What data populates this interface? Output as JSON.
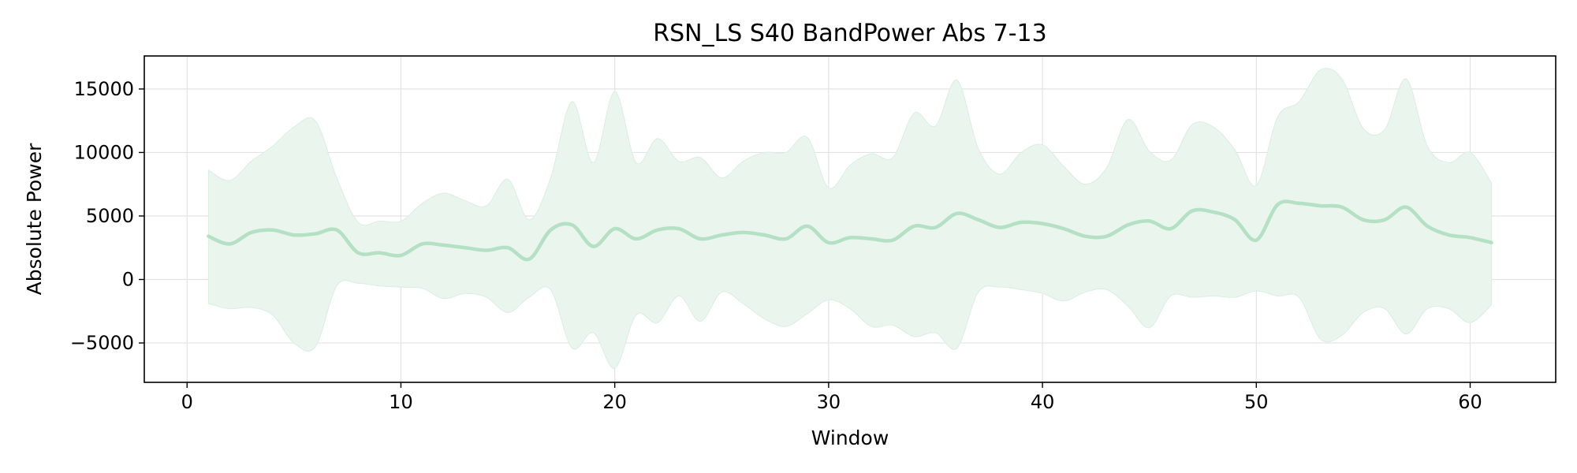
{
  "chart_data": {
    "type": "line",
    "title": "RSN_LS S40 BandPower Abs 7-13",
    "xlabel": "Window",
    "ylabel": "Absolute Power",
    "xlim": [
      -2,
      64
    ],
    "ylim": [
      -8100,
      17600
    ],
    "xticks": [
      0,
      10,
      20,
      30,
      40,
      50,
      60
    ],
    "yticks": [
      -5000,
      0,
      5000,
      10000,
      15000
    ],
    "ytick_labels": [
      "−5000",
      "0",
      "5000",
      "10000",
      "15000"
    ],
    "grid": true,
    "legend": "none",
    "colors": {
      "line": "#b4e0c3",
      "band": "#eaf5ed",
      "band_edge": "#d9efe0"
    },
    "series": [
      {
        "x": [
          1,
          2,
          3,
          4,
          5,
          6,
          7,
          8,
          9,
          10,
          11,
          12,
          13,
          14,
          15,
          16,
          17,
          18,
          19,
          20,
          21,
          22,
          23,
          24,
          25,
          26,
          27,
          28,
          29,
          30,
          31,
          32,
          33,
          34,
          35,
          36,
          37,
          38,
          39,
          40,
          41,
          42,
          43,
          44,
          45,
          46,
          47,
          48,
          49,
          50,
          51,
          52,
          53,
          54,
          55,
          56,
          57,
          58,
          59,
          60,
          61
        ],
        "mean": [
          3400,
          2800,
          3700,
          3900,
          3500,
          3600,
          3900,
          2100,
          2100,
          1900,
          2800,
          2700,
          2500,
          2300,
          2500,
          1600,
          3900,
          4300,
          2600,
          4000,
          3200,
          3900,
          4000,
          3200,
          3500,
          3700,
          3500,
          3200,
          4200,
          2900,
          3300,
          3200,
          3100,
          4200,
          4100,
          5200,
          4700,
          4100,
          4500,
          4400,
          4000,
          3400,
          3400,
          4300,
          4600,
          4000,
          5400,
          5300,
          4700,
          3100,
          5900,
          6000,
          5800,
          5700,
          4700,
          4700,
          5700,
          4200,
          3500,
          3300,
          2900
        ],
        "upper": [
          8600,
          7800,
          9300,
          10500,
          12000,
          12500,
          8000,
          4500,
          4600,
          4600,
          6000,
          6800,
          6200,
          5800,
          7900,
          4700,
          8000,
          14000,
          9200,
          14800,
          9200,
          11100,
          9300,
          9600,
          8000,
          9300,
          10000,
          10000,
          11200,
          7200,
          9000,
          9900,
          9600,
          13100,
          12100,
          15700,
          10300,
          8300,
          10000,
          10600,
          8900,
          7500,
          8800,
          12600,
          10100,
          9400,
          12200,
          12000,
          10200,
          7400,
          12800,
          14000,
          16500,
          15800,
          11900,
          11800,
          15800,
          10500,
          9200,
          10000,
          7600
        ],
        "lower": [
          -1900,
          -2300,
          -2200,
          -2800,
          -5000,
          -5300,
          -500,
          -300,
          -500,
          -600,
          -700,
          -1500,
          -1100,
          -1400,
          -2600,
          -1400,
          -800,
          -5400,
          -4200,
          -7000,
          -2800,
          -3400,
          -1300,
          -3300,
          -1000,
          -1900,
          -3100,
          -3700,
          -2700,
          -1600,
          -2300,
          -3700,
          -3600,
          -4500,
          -4200,
          -5400,
          -1000,
          -600,
          -800,
          -1100,
          -1700,
          -1000,
          -800,
          -2100,
          -3800,
          -1300,
          -1400,
          -1300,
          -1400,
          -900,
          -1300,
          -1400,
          -4700,
          -4400,
          -2600,
          -2300,
          -4300,
          -2300,
          -2300,
          -3400,
          -2000
        ]
      }
    ]
  }
}
